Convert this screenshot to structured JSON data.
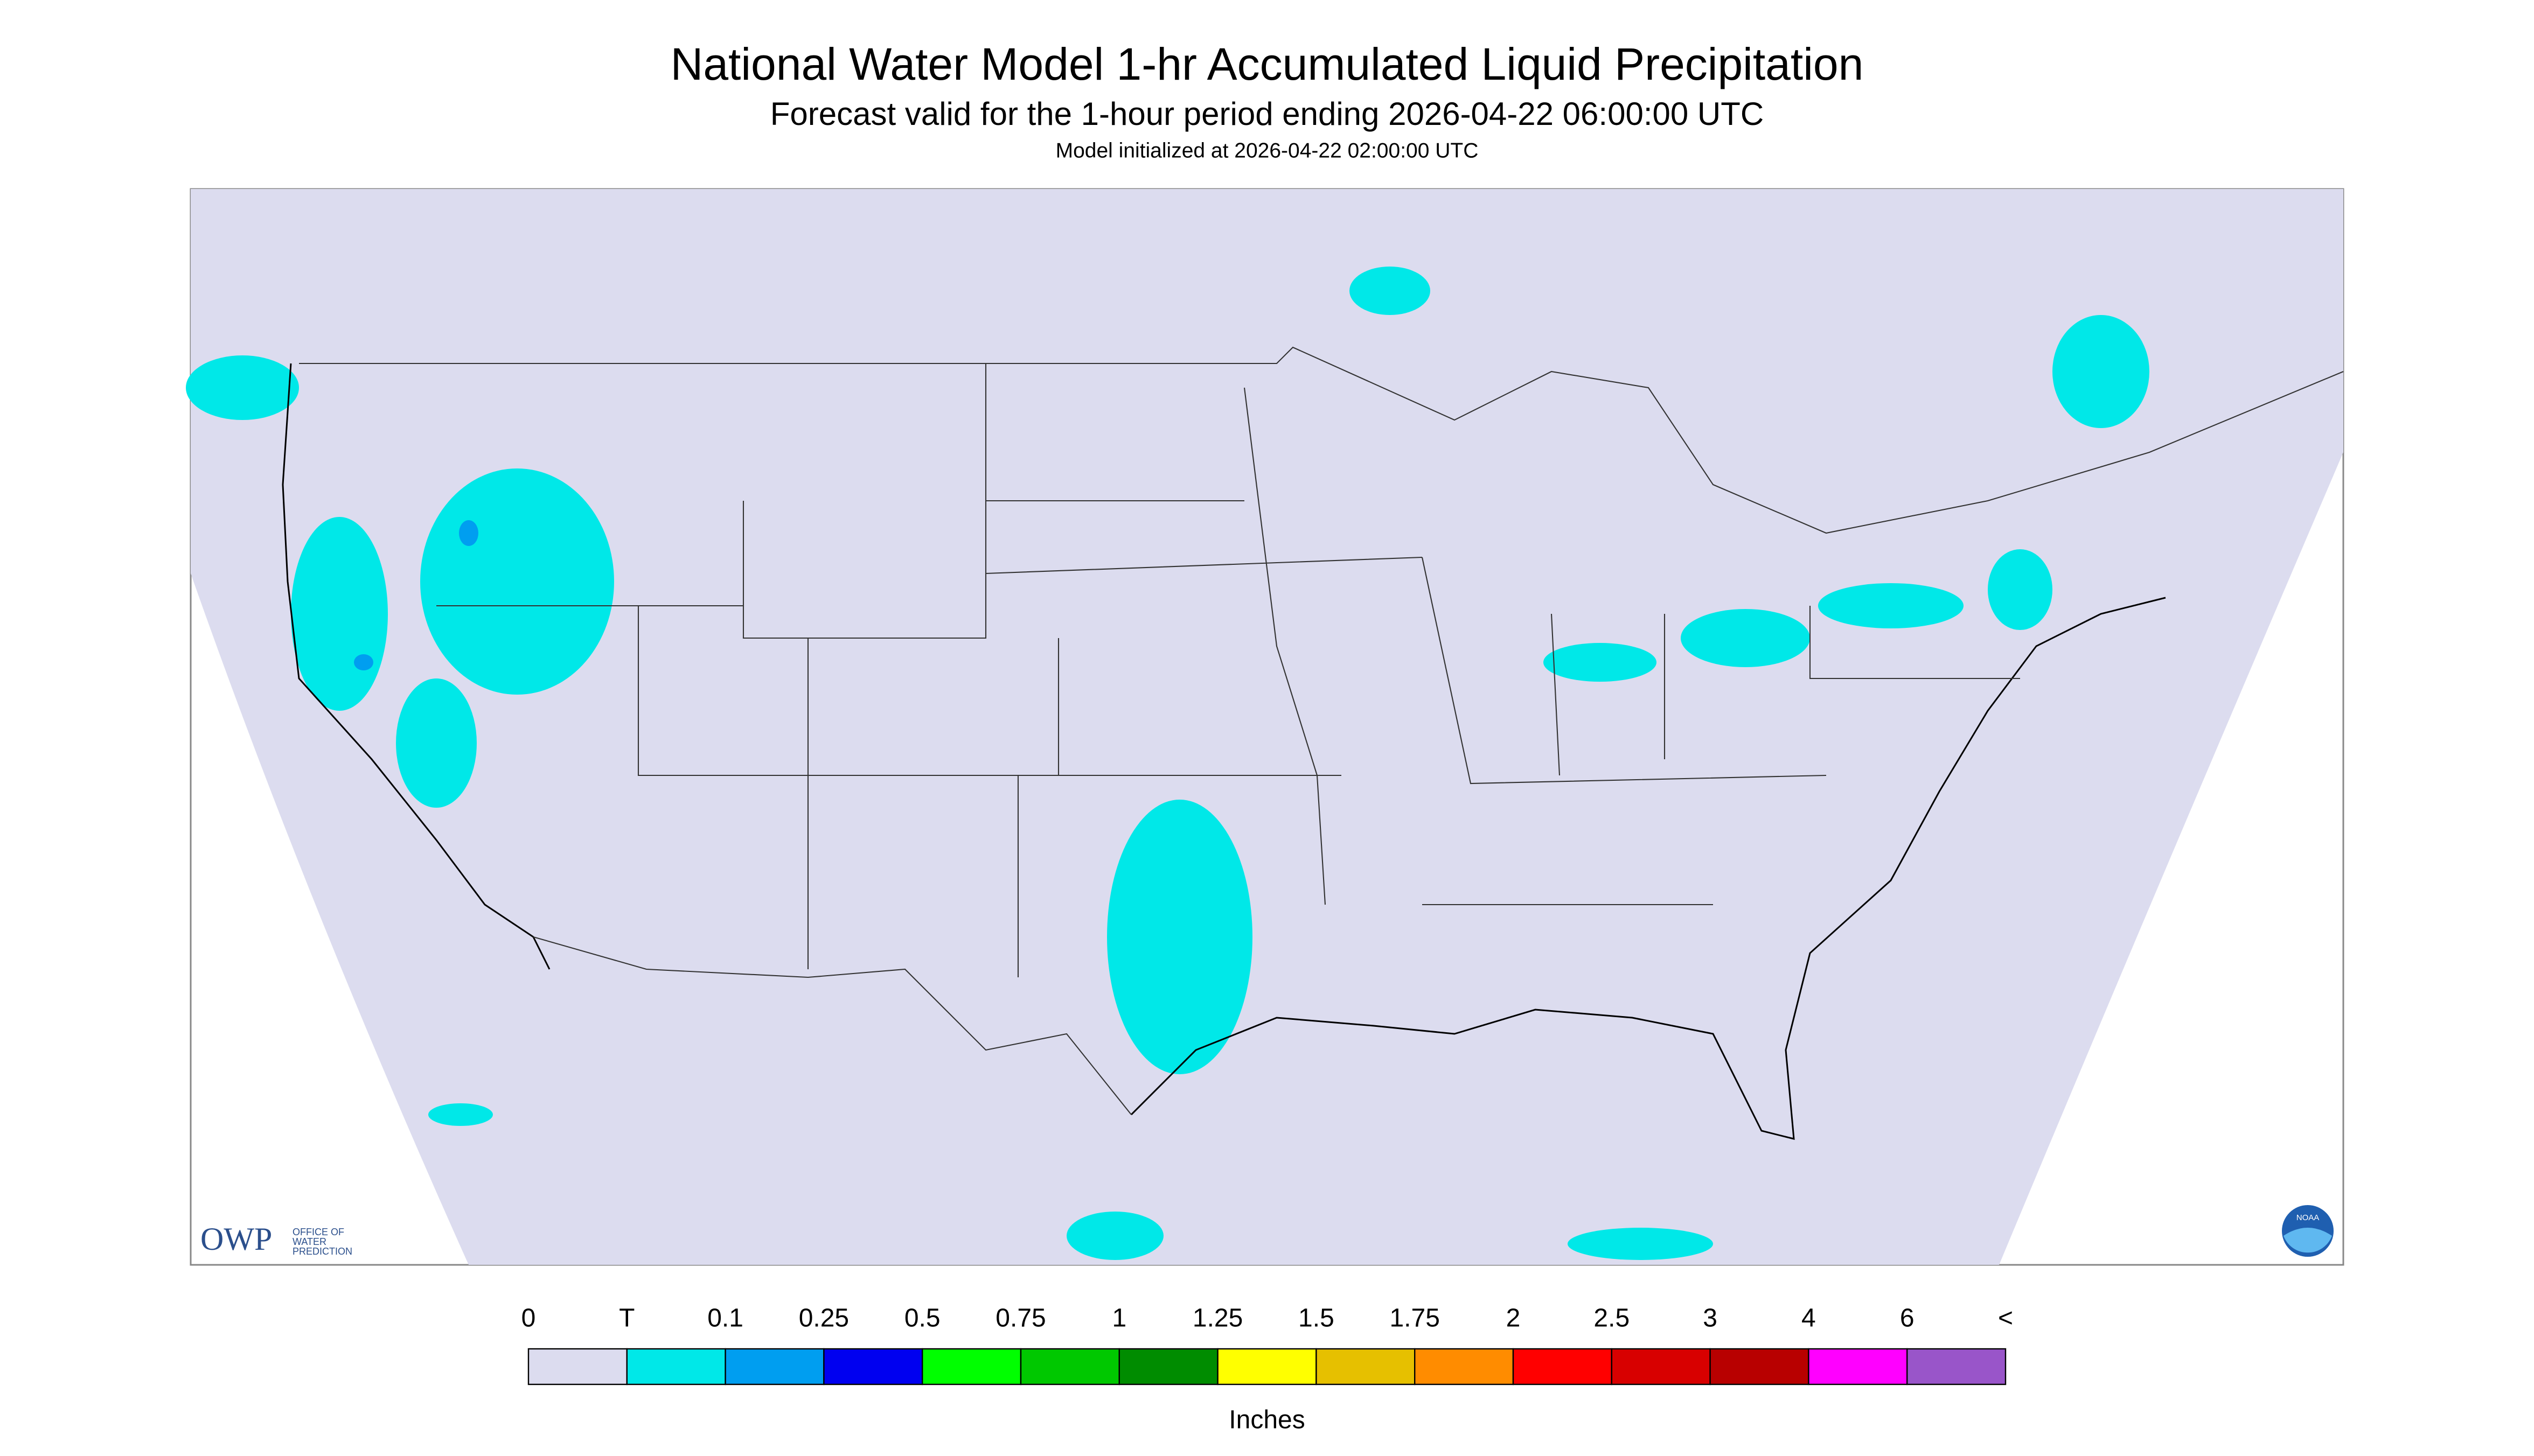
{
  "header": {
    "title": "National Water Model 1-hr Accumulated Liquid Precipitation",
    "subtitle": "Forecast valid for the 1-hour period ending 2026-04-22 06:00:00 UTC",
    "note": "Model initialized at 2026-04-22 02:00:00 UTC"
  },
  "logos": {
    "owp": "OWP",
    "owp_line1": "OFFICE OF",
    "owp_line2": "WATER",
    "owp_line3": "PREDICTION",
    "noaa": "NOAA"
  },
  "legend": {
    "labels": [
      "0",
      "T",
      "0.1",
      "0.25",
      "0.5",
      "0.75",
      "1",
      "1.25",
      "1.5",
      "1.75",
      "2",
      "2.5",
      "3",
      "4",
      "6",
      "<"
    ],
    "colors": [
      "#dcdcef",
      "#00e8e8",
      "#009ef0",
      "#0000f0",
      "#00ff00",
      "#00c800",
      "#008c00",
      "#ffff00",
      "#e6c000",
      "#ff8c00",
      "#ff0000",
      "#d80000",
      "#b80000",
      "#ff00ff",
      "#9955c9"
    ],
    "unit": "Inches"
  }
}
